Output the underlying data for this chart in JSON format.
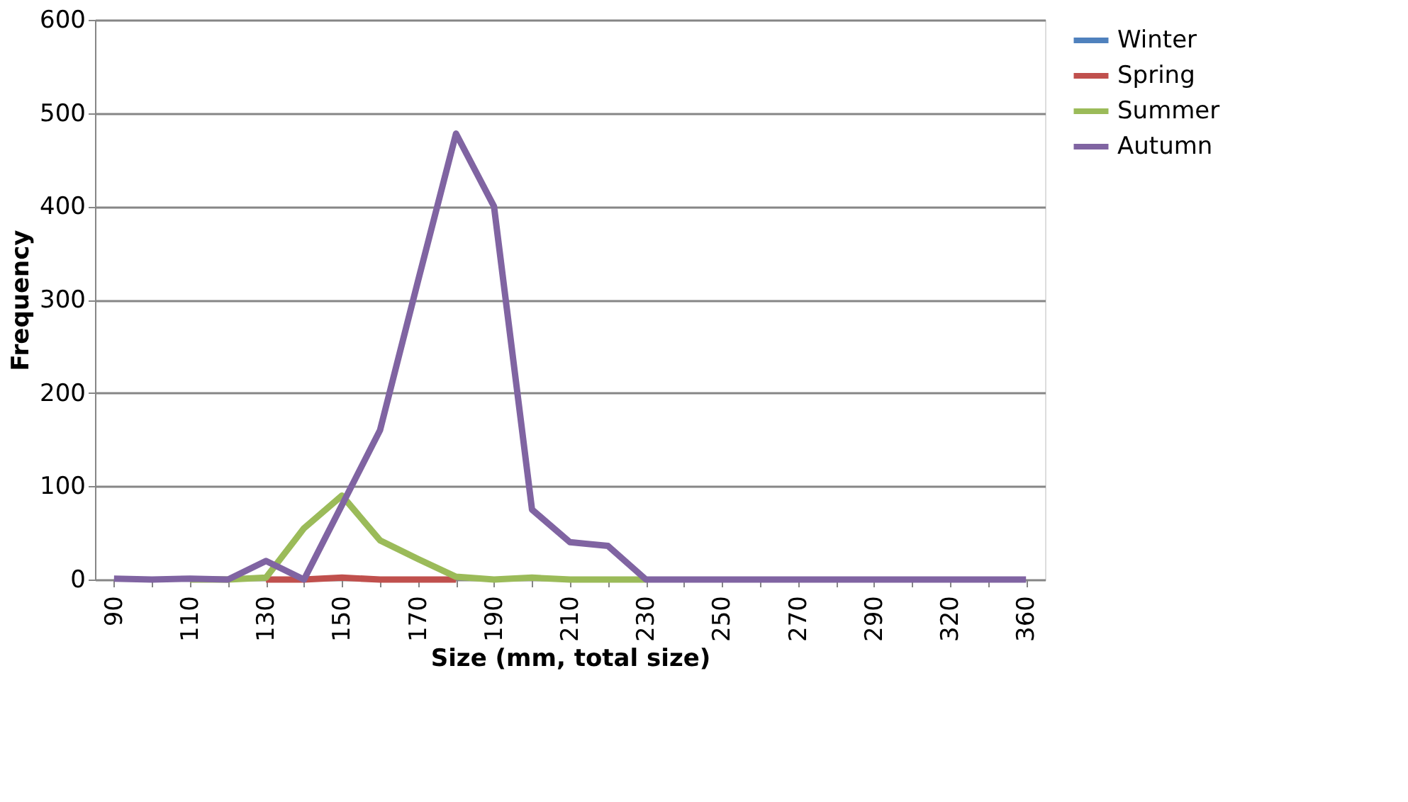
{
  "chart_data": {
    "type": "line",
    "xlabel": "Size (mm, total size)",
    "ylabel": "Frequency",
    "categories": [
      "90",
      null,
      "110",
      null,
      "130",
      null,
      "150",
      null,
      "170",
      null,
      "190",
      null,
      "210",
      null,
      "230",
      null,
      "250",
      null,
      "270",
      null,
      "290",
      null,
      "320",
      null,
      "360"
    ],
    "series": [
      {
        "name": "Winter",
        "color": "#4f81bd",
        "values": [
          null,
          null,
          null,
          null,
          null,
          null,
          null,
          null,
          null,
          null,
          null,
          null,
          null,
          null,
          null,
          null,
          null,
          null,
          null,
          null,
          null,
          null,
          null,
          null,
          null
        ]
      },
      {
        "name": "Spring",
        "color": "#c0504d",
        "values": [
          null,
          null,
          null,
          null,
          0,
          0,
          2,
          0,
          0,
          0,
          null,
          null,
          null,
          null,
          null,
          null,
          null,
          null,
          null,
          null,
          null,
          null,
          null,
          null,
          null
        ]
      },
      {
        "name": "Summer",
        "color": "#9bbb59",
        "values": [
          null,
          null,
          0,
          0,
          2,
          55,
          90,
          42,
          22,
          3,
          0,
          2,
          0,
          0,
          0,
          null,
          null,
          null,
          null,
          null,
          null,
          null,
          null,
          null,
          null
        ]
      },
      {
        "name": "Autumn",
        "color": "#8064a2",
        "values": [
          1,
          0,
          1,
          0,
          20,
          0,
          80,
          160,
          320,
          478,
          400,
          75,
          40,
          36,
          0,
          0,
          0,
          0,
          0,
          0,
          0,
          0,
          0,
          0,
          0
        ]
      }
    ],
    "ylim": [
      0,
      600
    ],
    "yticks": [
      0,
      100,
      200,
      300,
      400,
      500,
      600
    ],
    "grid": "y",
    "legend": "right",
    "marker": "none",
    "line_style": "solid"
  }
}
